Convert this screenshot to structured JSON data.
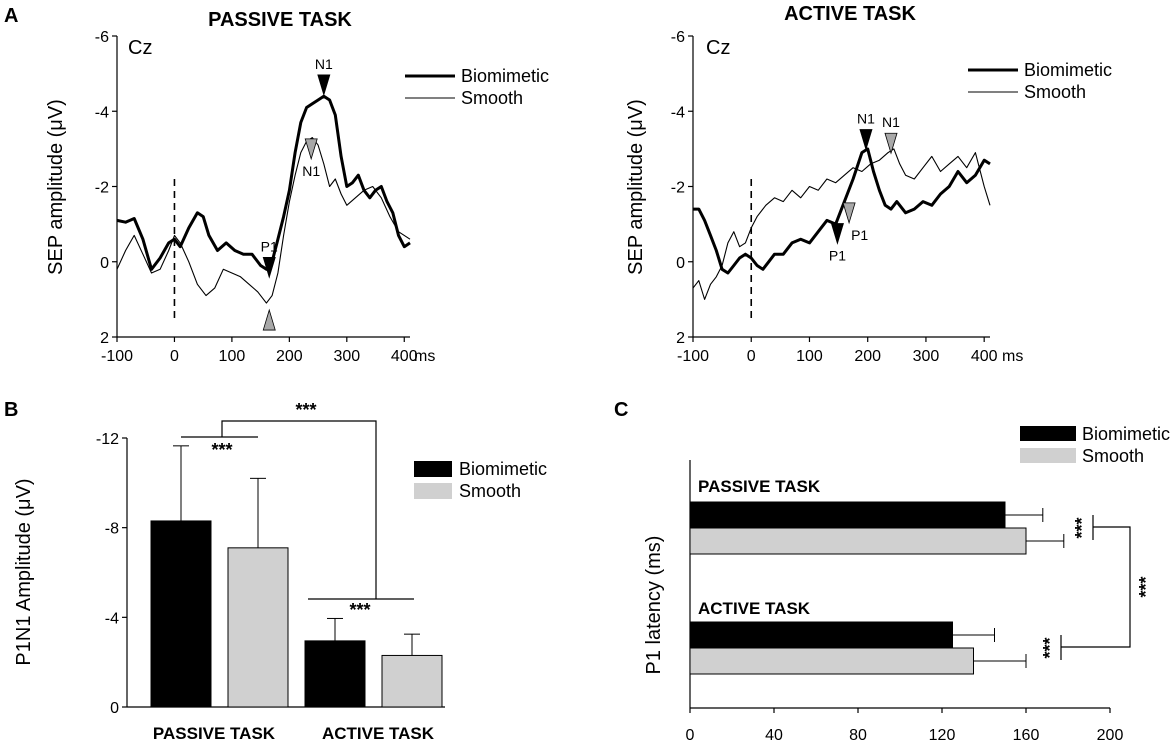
{
  "panels": {
    "a": "A",
    "b": "B",
    "c": "C"
  },
  "chart_data": [
    {
      "id": "A-passive",
      "type": "line",
      "title": "PASSIVE TASK",
      "channel": "Cz",
      "ylabel": "SEP amplitude (μV)",
      "xunit": "ms",
      "xlim": [
        -100,
        410
      ],
      "ylim": [
        2,
        -6
      ],
      "xticks": [
        -100,
        0,
        100,
        200,
        300,
        400
      ],
      "xtick_labels": [
        "-100",
        "0",
        "100",
        "200",
        "300",
        "400"
      ],
      "yticks": [
        -6,
        -4,
        -2,
        0,
        2
      ],
      "ytick_labels": [
        "-6",
        "-4",
        "-2",
        "0",
        "2"
      ],
      "onset_line_x": 0,
      "series": [
        {
          "name": "Biomimetic",
          "color": "#000000",
          "x": [
            -100,
            -85,
            -70,
            -55,
            -40,
            -25,
            -10,
            0,
            10,
            25,
            40,
            50,
            60,
            75,
            90,
            105,
            120,
            135,
            150,
            160,
            170,
            180,
            190,
            200,
            210,
            220,
            230,
            240,
            250,
            260,
            270,
            280,
            290,
            300,
            310,
            320,
            330,
            340,
            350,
            360,
            370,
            380,
            390,
            400,
            410
          ],
          "y": [
            -1.1,
            -1.05,
            -1.15,
            -0.6,
            0.2,
            -0.1,
            -0.5,
            -0.6,
            -0.4,
            -0.9,
            -1.3,
            -1.2,
            -0.7,
            -0.3,
            -0.5,
            -0.3,
            -0.2,
            -0.2,
            0.1,
            0.2,
            0,
            -0.6,
            -1.2,
            -1.9,
            -2.9,
            -3.7,
            -4.1,
            -4.2,
            -4.3,
            -4.4,
            -4.3,
            -3.9,
            -2.8,
            -2.0,
            -2.1,
            -2.3,
            -1.9,
            -1.7,
            -1.9,
            -2.0,
            -1.6,
            -1.3,
            -0.7,
            -0.4,
            -0.5
          ]
        },
        {
          "name": "Smooth",
          "color": "#000000",
          "x": [
            -100,
            -85,
            -70,
            -55,
            -40,
            -25,
            -10,
            0,
            10,
            25,
            40,
            55,
            70,
            85,
            100,
            115,
            130,
            145,
            160,
            170,
            180,
            190,
            200,
            210,
            220,
            230,
            240,
            250,
            260,
            270,
            280,
            290,
            300,
            315,
            330,
            345,
            360,
            375,
            390,
            410
          ],
          "y": [
            0.2,
            -0.3,
            -0.7,
            -0.2,
            0.3,
            0.2,
            -0.3,
            -0.7,
            -0.5,
            0,
            0.6,
            0.9,
            0.7,
            0.2,
            0.3,
            0.4,
            0.6,
            0.8,
            1.1,
            0.9,
            0.3,
            -0.7,
            -1.6,
            -2.3,
            -2.9,
            -3.2,
            -3.3,
            -3.1,
            -2.6,
            -2.0,
            -2.2,
            -1.8,
            -1.5,
            -1.7,
            -1.9,
            -2.0,
            -1.7,
            -1.2,
            -0.8,
            -0.6
          ]
        }
      ],
      "annotations": [
        {
          "text": "N1",
          "x": 260,
          "y": -4.7,
          "marker": "black",
          "pos": "above"
        },
        {
          "text": "N1",
          "x": 238,
          "y": -3.0,
          "marker": "gray",
          "pos": "below"
        },
        {
          "text": "P1",
          "x": 165,
          "y": 0.15,
          "marker": "black",
          "pos": "above"
        },
        {
          "text": "",
          "x": 165,
          "y": 1.55,
          "marker": "gray",
          "pos": "up"
        }
      ],
      "legend": {
        "position": "top-right",
        "entries": [
          "Biomimetic",
          "Smooth"
        ]
      }
    },
    {
      "id": "A-active",
      "type": "line",
      "title": "ACTIVE TASK",
      "channel": "Cz",
      "ylabel": "SEP amplitude (μV)",
      "xunit": "ms",
      "xlim": [
        -100,
        410
      ],
      "ylim": [
        2,
        -6
      ],
      "xticks": [
        -100,
        0,
        100,
        200,
        300,
        400
      ],
      "xtick_labels": [
        "-100",
        "0",
        "100",
        "200",
        "300",
        "400"
      ],
      "yticks": [
        -6,
        -4,
        -2,
        0,
        2
      ],
      "ytick_labels": [
        "-6",
        "-4",
        "-2",
        "0",
        "2"
      ],
      "onset_line_x": 0,
      "series": [
        {
          "name": "Biomimetic",
          "color": "#000000",
          "x": [
            -100,
            -90,
            -80,
            -70,
            -60,
            -50,
            -40,
            -30,
            -20,
            -10,
            0,
            10,
            20,
            30,
            40,
            55,
            70,
            85,
            100,
            115,
            130,
            145,
            160,
            175,
            190,
            200,
            210,
            220,
            230,
            240,
            250,
            265,
            280,
            295,
            310,
            325,
            340,
            355,
            370,
            385,
            400,
            410
          ],
          "y": [
            -1.4,
            -1.4,
            -1.1,
            -0.7,
            -0.3,
            0.2,
            0.3,
            0.1,
            -0.1,
            -0.2,
            -0.1,
            0.1,
            0.2,
            0,
            -0.2,
            -0.2,
            -0.5,
            -0.6,
            -0.5,
            -0.8,
            -1.1,
            -1.0,
            -1.6,
            -2.2,
            -2.9,
            -3.0,
            -2.4,
            -1.9,
            -1.5,
            -1.4,
            -1.6,
            -1.3,
            -1.4,
            -1.6,
            -1.5,
            -1.8,
            -2.0,
            -2.4,
            -2.1,
            -2.3,
            -2.7,
            -2.6
          ]
        },
        {
          "name": "Smooth",
          "color": "#000000",
          "x": [
            -100,
            -90,
            -80,
            -70,
            -60,
            -50,
            -40,
            -30,
            -20,
            -10,
            0,
            10,
            25,
            40,
            55,
            70,
            85,
            100,
            115,
            130,
            145,
            160,
            175,
            190,
            205,
            220,
            235,
            245,
            255,
            265,
            280,
            295,
            310,
            325,
            340,
            355,
            370,
            385,
            400,
            410
          ],
          "y": [
            0.7,
            0.5,
            1.0,
            0.6,
            0.4,
            0.1,
            -0.5,
            -0.8,
            -0.4,
            -0.5,
            -0.9,
            -1.2,
            -1.5,
            -1.7,
            -1.6,
            -1.9,
            -1.7,
            -2.0,
            -1.9,
            -2.2,
            -2.1,
            -2.3,
            -2.5,
            -2.4,
            -2.6,
            -2.7,
            -2.9,
            -3.0,
            -2.6,
            -2.3,
            -2.2,
            -2.5,
            -2.8,
            -2.4,
            -2.6,
            -2.8,
            -2.5,
            -2.9,
            -2.0,
            -1.5
          ]
        }
      ],
      "annotations": [
        {
          "text": "N1",
          "x": 197,
          "y": -3.25,
          "marker": "black",
          "pos": "above"
        },
        {
          "text": "N1",
          "x": 240,
          "y": -3.15,
          "marker": "gray",
          "pos": "above"
        },
        {
          "text": "P1",
          "x": 168,
          "y": -1.3,
          "marker": "gray",
          "pos": "right"
        },
        {
          "text": "P1",
          "x": 148,
          "y": -0.75,
          "marker": "black",
          "pos": "below"
        }
      ],
      "legend": {
        "position": "top-right",
        "entries": [
          "Biomimetic",
          "Smooth"
        ]
      }
    },
    {
      "id": "B",
      "type": "bar",
      "ylabel": "P1N1 Amplitude (μV)",
      "categories": [
        "PASSIVE TASK",
        "ACTIVE TASK"
      ],
      "ylim": [
        0,
        -12
      ],
      "yticks": [
        0,
        -4,
        -8,
        -12
      ],
      "ytick_labels": [
        "0",
        "-4",
        "-8",
        "-12"
      ],
      "series": [
        {
          "name": "Biomimetic",
          "color": "#000000",
          "values": [
            -8.3,
            -2.95
          ],
          "errors": [
            3.35,
            1.0
          ]
        },
        {
          "name": "Smooth",
          "color": "#d0d0d0",
          "values": [
            -7.1,
            -2.3
          ],
          "errors": [
            3.1,
            0.95
          ]
        }
      ],
      "significance": [
        "***",
        "***",
        "***"
      ],
      "legend": {
        "position": "right",
        "entries": [
          "Biomimetic",
          "Smooth"
        ]
      }
    },
    {
      "id": "C",
      "type": "bar",
      "orientation": "horizontal",
      "ylabel": "P1 latency (ms)",
      "categories": [
        "PASSIVE TASK",
        "ACTIVE TASK"
      ],
      "xlim": [
        0,
        200
      ],
      "xticks": [
        0,
        40,
        80,
        120,
        160,
        200
      ],
      "xtick_labels": [
        "0",
        "40",
        "80",
        "120",
        "160",
        "200"
      ],
      "series": [
        {
          "name": "Biomimetic",
          "color": "#000000",
          "values": [
            150,
            125
          ],
          "errors": [
            18,
            20
          ]
        },
        {
          "name": "Smooth",
          "color": "#d0d0d0",
          "values": [
            160,
            135
          ],
          "errors": [
            18,
            25
          ]
        }
      ],
      "significance": [
        "***",
        "***",
        "***"
      ],
      "legend": {
        "position": "top-right",
        "entries": [
          "Biomimetic",
          "Smooth"
        ]
      }
    }
  ]
}
